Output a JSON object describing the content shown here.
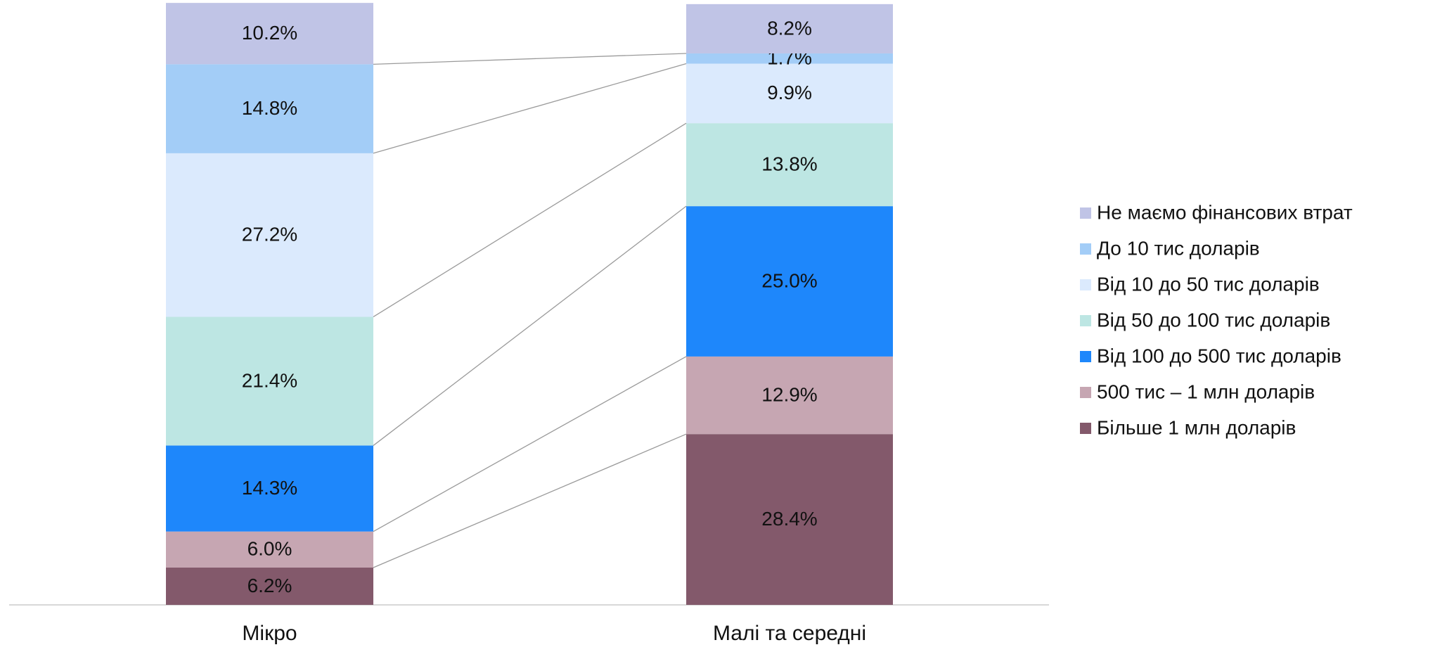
{
  "chart_data": {
    "type": "stacked_bar",
    "categories": [
      "Мікро",
      "Малі та середні"
    ],
    "ylim": [
      0,
      100
    ],
    "series": [
      {
        "name": "Не маємо фінансових втрат",
        "color": "#c0c4e6",
        "values": [
          10.2,
          8.2
        ],
        "value_labels": [
          "10.2%",
          "8.2%"
        ]
      },
      {
        "name": "До 10 тис доларів",
        "color": "#a3cdf7",
        "values": [
          14.8,
          1.7
        ],
        "value_labels": [
          "14.8%",
          "1.7%"
        ]
      },
      {
        "name": "Від 10 до 50 тис доларів",
        "color": "#dbeafd",
        "values": [
          27.2,
          9.9
        ],
        "value_labels": [
          "27.2%",
          "9.9%"
        ]
      },
      {
        "name": "Від 50 до 100 тис доларів",
        "color": "#bde6e3",
        "values": [
          21.4,
          13.8
        ],
        "value_labels": [
          "21.4%",
          "13.8%"
        ]
      },
      {
        "name": "Від 100 до 500 тис доларів",
        "color": "#1e87fb",
        "values": [
          14.3,
          25.0
        ],
        "value_labels": [
          "14.3%",
          "25.0%"
        ]
      },
      {
        "name": "500 тис – 1 млн доларів",
        "color": "#c6a6b2",
        "values": [
          6.0,
          12.9
        ],
        "value_labels": [
          "6.0%",
          "12.9%"
        ]
      },
      {
        "name": "Більше 1 млн доларів",
        "color": "#83596b",
        "values": [
          6.2,
          28.4
        ],
        "value_labels": [
          "6.2%",
          "28.4%"
        ]
      }
    ]
  }
}
